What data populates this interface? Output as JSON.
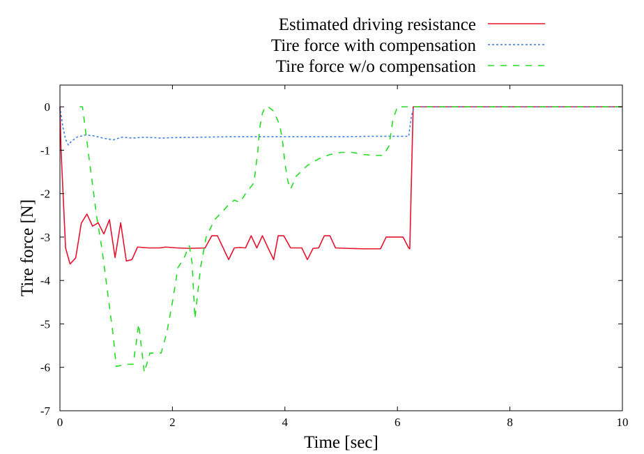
{
  "chart_data": {
    "type": "line",
    "title": "",
    "xlabel": "Time [sec]",
    "ylabel": "Tire force [N]",
    "xlim": [
      0,
      10
    ],
    "ylim": [
      -7,
      0.5
    ],
    "xticks": [
      0,
      2,
      4,
      6,
      8,
      10
    ],
    "yticks": [
      0,
      -1,
      -2,
      -3,
      -4,
      -5,
      -6,
      -7
    ],
    "grid": false,
    "legend_position": "top-right, above plot",
    "series": [
      {
        "name": "Estimated driving resistance",
        "color": "#e8112d",
        "dash": "solid",
        "x": [
          0,
          0.02,
          0.1,
          0.18,
          0.28,
          0.38,
          0.48,
          0.58,
          0.68,
          0.78,
          0.88,
          0.98,
          1.08,
          1.18,
          1.28,
          1.38,
          1.58,
          1.78,
          1.88,
          2.08,
          2.3,
          2.58,
          2.7,
          2.8,
          3.0,
          3.1,
          3.2,
          3.3,
          3.4,
          3.5,
          3.6,
          3.7,
          3.8,
          3.88,
          3.98,
          4.1,
          4.2,
          4.3,
          4.4,
          4.5,
          4.6,
          4.7,
          4.8,
          4.9,
          5.1,
          5.4,
          5.6,
          5.7,
          5.8,
          6.0,
          6.1,
          6.2,
          6.22,
          6.28,
          6.5,
          8,
          10
        ],
        "values": [
          0,
          -1.0,
          -3.25,
          -3.62,
          -3.48,
          -2.68,
          -2.47,
          -2.75,
          -2.67,
          -2.93,
          -2.6,
          -3.47,
          -2.67,
          -3.55,
          -3.52,
          -3.23,
          -3.25,
          -3.25,
          -3.23,
          -3.25,
          -3.26,
          -3.25,
          -2.97,
          -2.97,
          -3.52,
          -3.25,
          -3.24,
          -3.25,
          -2.97,
          -3.25,
          -2.97,
          -3.25,
          -3.52,
          -2.97,
          -2.97,
          -3.25,
          -3.25,
          -3.25,
          -3.52,
          -3.26,
          -3.25,
          -2.97,
          -2.97,
          -3.25,
          -3.26,
          -3.27,
          -3.27,
          -3.27,
          -3.0,
          -3.0,
          -3.0,
          -3.25,
          -3.27,
          0,
          0,
          0,
          0
        ]
      },
      {
        "name": "Tire force with compensation",
        "color": "#3d7fe6",
        "dash": "dotted",
        "x": [
          0,
          0.05,
          0.1,
          0.15,
          0.2,
          0.3,
          0.45,
          0.6,
          0.8,
          0.95,
          1.1,
          1.3,
          1.5,
          1.8,
          2.0,
          2.5,
          3.0,
          3.5,
          4.0,
          4.5,
          5.0,
          5.5,
          6.0,
          6.2,
          6.25,
          6.3,
          8,
          10
        ],
        "values": [
          0,
          -0.45,
          -0.75,
          -0.88,
          -0.8,
          -0.7,
          -0.65,
          -0.67,
          -0.73,
          -0.76,
          -0.7,
          -0.72,
          -0.7,
          -0.72,
          -0.71,
          -0.7,
          -0.69,
          -0.69,
          -0.69,
          -0.69,
          -0.69,
          -0.68,
          -0.68,
          -0.68,
          -0.2,
          0,
          0,
          0
        ]
      },
      {
        "name": "Tire force w/o compensation",
        "color": "#22dd22",
        "dash": "dashed",
        "x": [
          0.35,
          0.4,
          0.45,
          0.55,
          0.65,
          0.75,
          0.85,
          0.95,
          1.0,
          1.1,
          1.2,
          1.3,
          1.35,
          1.4,
          1.5,
          1.6,
          1.8,
          1.9,
          2.0,
          2.1,
          2.2,
          2.3,
          2.35,
          2.4,
          2.5,
          2.6,
          2.75,
          2.9,
          3.0,
          3.1,
          3.2,
          3.3,
          3.45,
          3.52,
          3.55,
          3.6,
          3.65,
          3.7,
          3.8,
          3.9,
          3.95,
          4.0,
          4.05,
          4.1,
          4.2,
          4.4,
          4.6,
          4.8,
          5.0,
          5.2,
          5.4,
          5.6,
          5.75,
          5.85,
          5.92,
          6.0,
          6.1,
          6.2,
          6.25,
          6.3,
          8,
          10
        ],
        "values": [
          0,
          0,
          -0.5,
          -1.5,
          -2.5,
          -3.3,
          -4.3,
          -5.3,
          -5.98,
          -5.95,
          -5.93,
          -5.93,
          -5.5,
          -5.0,
          -6.12,
          -5.67,
          -5.67,
          -5.2,
          -4.5,
          -3.7,
          -3.5,
          -3.2,
          -3.6,
          -4.88,
          -3.7,
          -3.0,
          -2.6,
          -2.4,
          -2.25,
          -2.15,
          -2.2,
          -2.0,
          -1.75,
          -1.0,
          -0.5,
          -0.15,
          0,
          0,
          -0.1,
          -0.4,
          -0.7,
          -1.3,
          -1.7,
          -1.9,
          -1.6,
          -1.35,
          -1.2,
          -1.1,
          -1.05,
          -1.05,
          -1.1,
          -1.12,
          -1.12,
          -0.9,
          -0.3,
          0,
          0,
          0,
          0,
          0,
          0,
          0
        ]
      }
    ]
  }
}
